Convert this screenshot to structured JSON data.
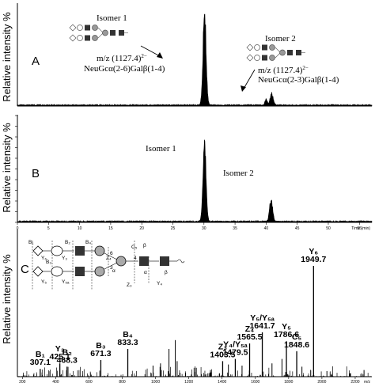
{
  "chart_data": [
    {
      "panel": "A",
      "type": "line",
      "ylabel": "Relative intensity %",
      "xlabel": "",
      "peaks": [
        {
          "x": 30.1,
          "y": 100,
          "width": 0.35
        },
        {
          "x": 40.0,
          "y": 6,
          "width": 0.25
        },
        {
          "x": 40.9,
          "y": 12,
          "width": 0.35
        }
      ],
      "annotations": [
        {
          "label": "Isomer 1",
          "mz": "m/z (1127.4)",
          "charge": "2−",
          "linkage": "NeuGcα(2-6)Galβ(1-4)"
        },
        {
          "label": "Isomer 2",
          "mz": "m/z (1127.4)",
          "charge": "2−",
          "linkage": "NeuGcα(2-3)Galβ(1-4)"
        }
      ]
    },
    {
      "panel": "B",
      "type": "line",
      "ylabel": "Relative intensity %",
      "xlabel": "",
      "x_unit": "Time (min)",
      "xticks": [
        "0",
        "5",
        "10",
        "15",
        "20",
        "25",
        "30",
        "35",
        "40",
        "45",
        "50",
        "55"
      ],
      "peaks": [
        {
          "x": 30.1,
          "y": 80,
          "width": 0.35
        },
        {
          "x": 40.8,
          "y": 22,
          "width": 0.35
        }
      ],
      "annotations": [
        {
          "label": "Isomer 1"
        },
        {
          "label": "Isomer 2"
        }
      ]
    },
    {
      "panel": "C",
      "type": "bar",
      "ylabel": "Relative intensity %",
      "xlabel": "m/z",
      "xticks": [
        "200",
        "400",
        "600",
        "800",
        "1000",
        "1200",
        "1400",
        "1600",
        "1800",
        "2000",
        "2200"
      ],
      "fragments": [
        {
          "name": "B₁",
          "mz": 307.1,
          "intensity": 7
        },
        {
          "name": "Y₃",
          "mz": 425.1,
          "intensity": 12
        },
        {
          "name": "B₂",
          "mz": 468.3,
          "intensity": 9
        },
        {
          "name": "B₃",
          "mz": 671.3,
          "intensity": 15
        },
        {
          "name": "B₄",
          "mz": 833.3,
          "intensity": 25
        },
        {
          "name": "Z₃",
          "mz": 1403.5,
          "intensity": 14
        },
        {
          "name": "Y₄/Y₅ₐ",
          "mz": 1479.5,
          "intensity": 16
        },
        {
          "name": "Z₄",
          "mz": 1565.5,
          "intensity": 30
        },
        {
          "name": "Y₅/Y₅ₐ",
          "mz": 1641.7,
          "intensity": 40
        },
        {
          "name": "Y₅",
          "mz": 1786.6,
          "intensity": 32
        },
        {
          "name": "C₅",
          "mz": 1848.6,
          "intensity": 23
        },
        {
          "name": "Y₆",
          "mz": 1949.7,
          "intensity": 100
        }
      ],
      "minor_peaks": [
        {
          "mz": 1119.0,
          "intensity": 33
        },
        {
          "mz": 1080.9,
          "intensity": 25
        },
        {
          "mz": 1030,
          "intensity": 12
        },
        {
          "mz": 985,
          "intensity": 10
        },
        {
          "mz": 1130,
          "intensity": 14
        },
        {
          "mz": 1245,
          "intensity": 8
        },
        {
          "mz": 1330,
          "intensity": 6
        },
        {
          "mz": 1438,
          "intensity": 11
        },
        {
          "mz": 1520,
          "intensity": 10
        },
        {
          "mz": 1700,
          "intensity": 12
        },
        {
          "mz": 1760,
          "intensity": 16
        },
        {
          "mz": 1880,
          "intensity": 9
        },
        {
          "mz": 2030,
          "intensity": 5
        },
        {
          "mz": 2253,
          "intensity": 6
        }
      ],
      "structure_labels": {
        "B": [
          "B₁",
          "B₂",
          "B₃",
          "B₄"
        ],
        "Y": [
          "Y₆",
          "Y₅",
          "Y₅ₐ",
          "Y₃",
          "Y₄",
          "Y₂"
        ],
        "other": [
          "Z₄",
          "Z₃",
          "C₅",
          "α",
          "β",
          "α",
          "β",
          "β",
          "6",
          "3",
          "4"
        ]
      },
      "panel_labels": [
        "C"
      ]
    }
  ],
  "panel_labels": {
    "a": "A",
    "b": "B",
    "c": "C"
  },
  "isomer_labels": {
    "a1": "Isomer 1",
    "a2": "Isomer 2",
    "b1": "Isomer 1",
    "b2": "Isomer 2"
  },
  "mz_annotation": {
    "text": "m/z (1127.4)",
    "charge": "2−"
  },
  "linkage": {
    "iso1": "NeuGcα(2-6)Galβ(1-4)",
    "iso2": "NeuGcα(2-3)Galβ(1-4)"
  },
  "ylabel": "Relative intensity %"
}
